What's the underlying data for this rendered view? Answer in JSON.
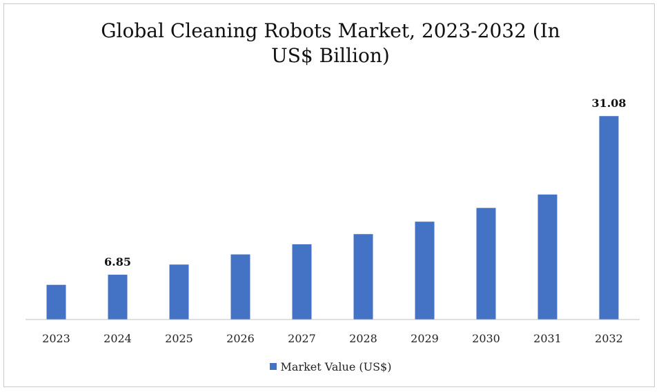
{
  "chart_data": {
    "type": "bar",
    "title_line1": "Global Cleaning Robots Market, 2023-2032 (In",
    "title_line2": "US$ Billion)",
    "categories": [
      "2023",
      "2024",
      "2025",
      "2026",
      "2027",
      "2028",
      "2029",
      "2030",
      "2031",
      "2032"
    ],
    "series": [
      {
        "name": "Market Value (US$)",
        "values": [
          5.3,
          6.85,
          8.4,
          9.95,
          11.5,
          13.05,
          14.95,
          17.05,
          19.1,
          31.08
        ],
        "color": "#4472c4"
      }
    ],
    "data_labels": [
      {
        "category": "2024",
        "text": "6.85"
      },
      {
        "category": "2032",
        "text": "31.08"
      }
    ],
    "ylim": [
      0,
      33
    ],
    "grid": false,
    "legend_position": "bottom"
  }
}
